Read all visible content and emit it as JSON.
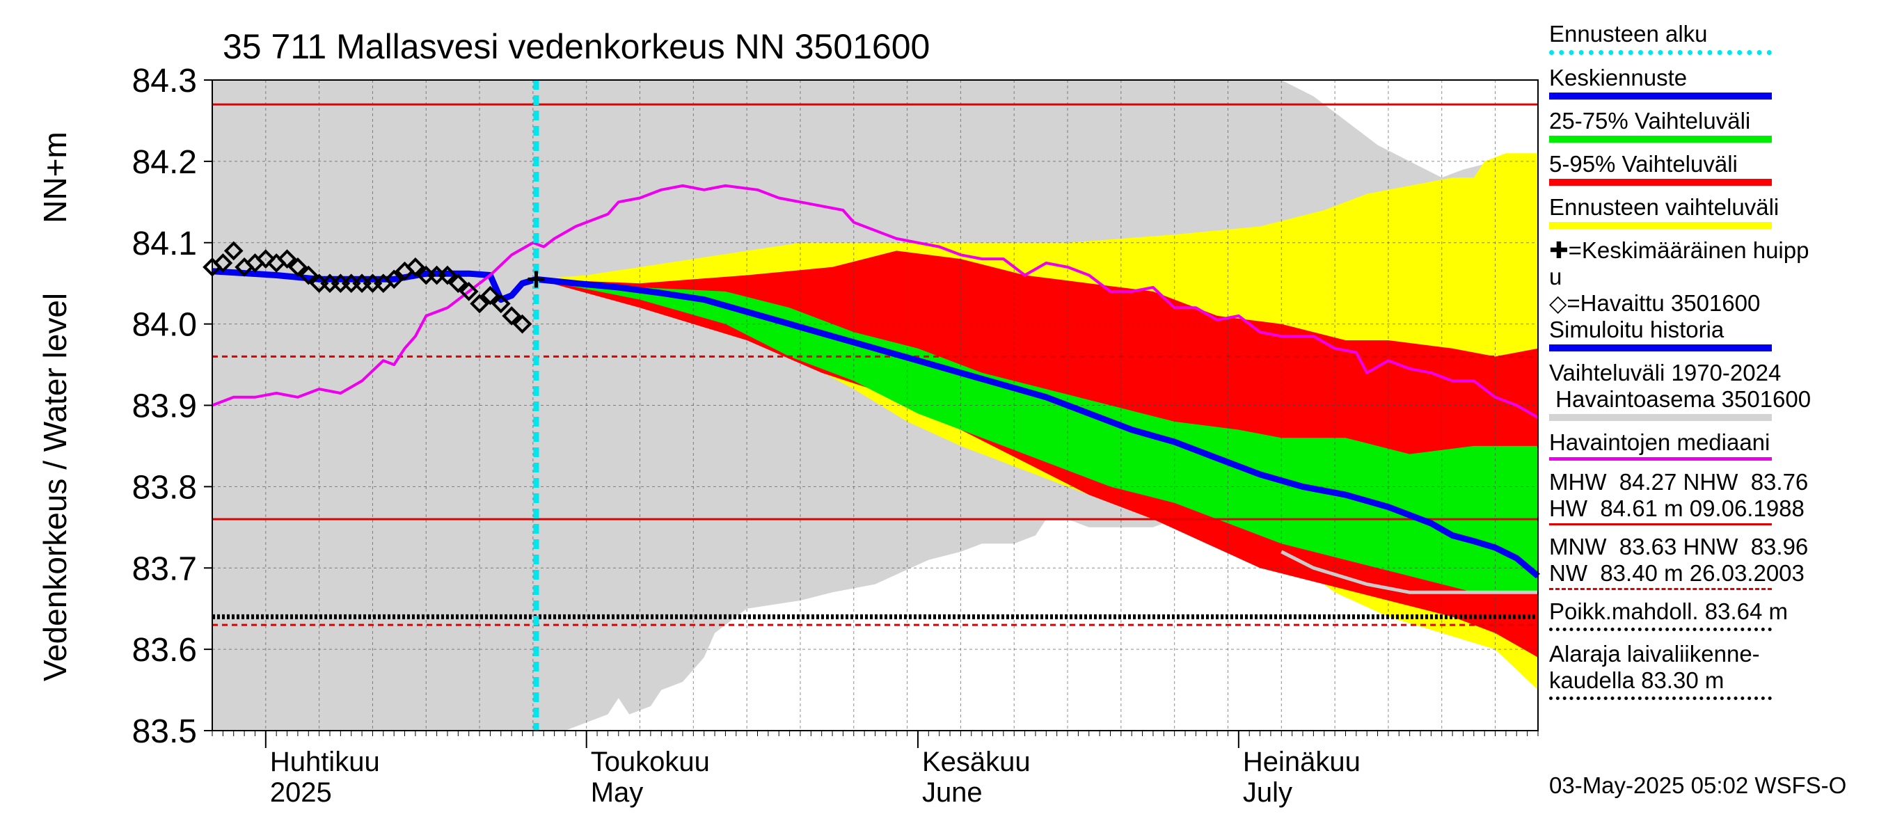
{
  "chart_data": {
    "type": "area",
    "title": "35 711 Mallasvesi vedenkorkeus NN 3501600",
    "ylabel_left": "Vedenkorkeus / Water level",
    "ylabel_unit": "NN+m",
    "ylim": [
      83.5,
      84.3
    ],
    "yticks": [
      "84.3",
      "84.2",
      "84.1",
      "84.0",
      "83.9",
      "83.8",
      "83.7",
      "83.6",
      "83.5"
    ],
    "x_range": [
      "2025-03-27",
      "2025-07-31"
    ],
    "month_labels": [
      {
        "top": "Huhtikuu",
        "bottom": "2025",
        "date": "2025-04-01"
      },
      {
        "top": "Toukokuu",
        "bottom": "May",
        "date": "2025-05-01"
      },
      {
        "top": "Kesäkuu",
        "bottom": "June",
        "date": "2025-06-01"
      },
      {
        "top": "Heinäkuu",
        "bottom": "July",
        "date": "2025-07-01"
      }
    ],
    "forecast_start_day": 30.3,
    "reference_lines": [
      {
        "name": "MHW",
        "value": 84.27,
        "style": "solid",
        "color": "#e00000"
      },
      {
        "name": "NHW",
        "value": 83.76,
        "style": "solid",
        "color": "#e00000"
      },
      {
        "name": "MNW",
        "value": 83.63,
        "style": "dashed",
        "color": "#e00000"
      },
      {
        "name": "HNW",
        "value": 83.96,
        "style": "dashed",
        "color": "#e00000"
      },
      {
        "name": "Poikk.mahdoll.",
        "value": 83.64,
        "style": "dotted",
        "color": "#000000"
      }
    ],
    "history_range": {
      "upper": [
        [
          0,
          84.3
        ],
        [
          100,
          84.3
        ],
        [
          103,
          84.28
        ],
        [
          106,
          84.25
        ],
        [
          109,
          84.22
        ],
        [
          112,
          84.2
        ],
        [
          115,
          84.18
        ],
        [
          117,
          84.19
        ],
        [
          120,
          84.2
        ],
        [
          124,
          84.21
        ]
      ],
      "lower": [
        [
          0,
          83.5
        ],
        [
          33,
          83.5
        ],
        [
          35,
          83.51
        ],
        [
          37,
          83.52
        ],
        [
          38,
          83.54
        ],
        [
          39,
          83.52
        ],
        [
          41,
          83.53
        ],
        [
          42,
          83.55
        ],
        [
          44,
          83.56
        ],
        [
          46,
          83.59
        ],
        [
          47,
          83.62
        ],
        [
          50,
          83.65
        ],
        [
          55,
          83.66
        ],
        [
          58,
          83.67
        ],
        [
          62,
          83.68
        ],
        [
          67,
          83.71
        ],
        [
          70,
          83.72
        ],
        [
          72,
          83.73
        ],
        [
          75,
          83.73
        ],
        [
          77,
          83.74
        ],
        [
          78,
          83.76
        ],
        [
          80,
          83.76
        ],
        [
          82,
          83.75
        ],
        [
          88,
          83.75
        ],
        [
          90,
          83.76
        ],
        [
          92,
          83.75
        ],
        [
          96,
          83.74
        ],
        [
          100,
          83.72
        ],
        [
          103,
          83.7
        ],
        [
          108,
          83.68
        ],
        [
          112,
          83.67
        ],
        [
          117,
          83.67
        ],
        [
          124,
          83.67
        ]
      ]
    },
    "forecast_bands": {
      "p0_100": {
        "upper": [
          [
            30.3,
            84.055
          ],
          [
            35,
            84.06
          ],
          [
            45,
            84.08
          ],
          [
            55,
            84.1
          ],
          [
            60,
            84.1
          ],
          [
            70,
            84.1
          ],
          [
            80,
            84.1
          ],
          [
            90,
            84.11
          ],
          [
            98,
            84.12
          ],
          [
            104,
            84.14
          ],
          [
            108,
            84.16
          ],
          [
            112,
            84.17
          ],
          [
            116,
            84.18
          ],
          [
            118,
            84.18
          ],
          [
            119,
            84.2
          ],
          [
            121,
            84.21
          ],
          [
            124,
            84.21
          ]
        ],
        "lower": [
          [
            30.3,
            84.055
          ],
          [
            40,
            84.03
          ],
          [
            50,
            83.99
          ],
          [
            60,
            83.92
          ],
          [
            65,
            83.88
          ],
          [
            70,
            83.85
          ],
          [
            80,
            83.8
          ],
          [
            90,
            83.75
          ],
          [
            100,
            83.72
          ],
          [
            105,
            83.67
          ],
          [
            110,
            83.64
          ],
          [
            115,
            83.62
          ],
          [
            120,
            83.6
          ],
          [
            124,
            83.55
          ]
        ]
      },
      "p5_95": {
        "upper": [
          [
            30.3,
            84.055
          ],
          [
            40,
            84.05
          ],
          [
            50,
            84.06
          ],
          [
            58,
            84.07
          ],
          [
            64,
            84.09
          ],
          [
            70,
            84.08
          ],
          [
            76,
            84.06
          ],
          [
            82,
            84.05
          ],
          [
            88,
            84.04
          ],
          [
            94,
            84.01
          ],
          [
            100,
            84.0
          ],
          [
            106,
            83.98
          ],
          [
            110,
            83.98
          ],
          [
            116,
            83.97
          ],
          [
            120,
            83.96
          ],
          [
            124,
            83.97
          ]
        ],
        "lower": [
          [
            30.3,
            84.055
          ],
          [
            40,
            84.02
          ],
          [
            50,
            83.98
          ],
          [
            57,
            83.94
          ],
          [
            64,
            83.91
          ],
          [
            70,
            83.87
          ],
          [
            76,
            83.83
          ],
          [
            82,
            83.79
          ],
          [
            88,
            83.76
          ],
          [
            93,
            83.73
          ],
          [
            98,
            83.7
          ],
          [
            104,
            83.68
          ],
          [
            110,
            83.66
          ],
          [
            116,
            83.64
          ],
          [
            120,
            83.62
          ],
          [
            124,
            83.59
          ]
        ]
      },
      "p25_75": {
        "upper": [
          [
            30.3,
            84.055
          ],
          [
            40,
            84.045
          ],
          [
            48,
            84.04
          ],
          [
            54,
            84.02
          ],
          [
            60,
            83.99
          ],
          [
            66,
            83.97
          ],
          [
            72,
            83.94
          ],
          [
            78,
            83.92
          ],
          [
            84,
            83.9
          ],
          [
            90,
            83.88
          ],
          [
            96,
            83.87
          ],
          [
            100,
            83.86
          ],
          [
            106,
            83.86
          ],
          [
            112,
            83.84
          ],
          [
            118,
            83.85
          ],
          [
            124,
            83.85
          ]
        ],
        "lower": [
          [
            30.3,
            84.055
          ],
          [
            40,
            84.03
          ],
          [
            48,
            84.0
          ],
          [
            54,
            83.96
          ],
          [
            60,
            83.93
          ],
          [
            66,
            83.89
          ],
          [
            72,
            83.86
          ],
          [
            78,
            83.83
          ],
          [
            84,
            83.8
          ],
          [
            90,
            83.78
          ],
          [
            96,
            83.75
          ],
          [
            100,
            83.73
          ],
          [
            106,
            83.71
          ],
          [
            112,
            83.69
          ],
          [
            118,
            83.67
          ],
          [
            124,
            83.67
          ]
        ]
      }
    },
    "series": [
      {
        "name": "Keskiennuste",
        "color": "#0000ee",
        "points": [
          [
            30.3,
            84.055
          ],
          [
            34,
            84.05
          ],
          [
            38,
            84.045
          ],
          [
            42,
            84.038
          ],
          [
            46,
            84.03
          ],
          [
            50,
            84.015
          ],
          [
            54,
            84.0
          ],
          [
            58,
            83.985
          ],
          [
            62,
            83.97
          ],
          [
            66,
            83.955
          ],
          [
            70,
            83.94
          ],
          [
            74,
            83.925
          ],
          [
            78,
            83.91
          ],
          [
            82,
            83.89
          ],
          [
            86,
            83.87
          ],
          [
            90,
            83.855
          ],
          [
            94,
            83.835
          ],
          [
            98,
            83.815
          ],
          [
            102,
            83.8
          ],
          [
            106,
            83.79
          ],
          [
            110,
            83.775
          ],
          [
            114,
            83.755
          ],
          [
            116,
            83.74
          ],
          [
            118,
            83.733
          ],
          [
            120,
            83.725
          ],
          [
            122,
            83.712
          ],
          [
            124,
            83.69
          ]
        ]
      },
      {
        "name": "Simuloitu historia",
        "color": "#0000ee",
        "points": [
          [
            0,
            84.065
          ],
          [
            6,
            84.06
          ],
          [
            10,
            84.055
          ],
          [
            14,
            84.055
          ],
          [
            17,
            84.055
          ],
          [
            20,
            84.062
          ],
          [
            24,
            84.062
          ],
          [
            26,
            84.06
          ],
          [
            27,
            84.03
          ],
          [
            28,
            84.035
          ],
          [
            29,
            84.05
          ],
          [
            30.3,
            84.055
          ]
        ]
      },
      {
        "name": "Havaintojen mediaani",
        "color": "#ee00ee",
        "points": [
          [
            0,
            83.9
          ],
          [
            2,
            83.91
          ],
          [
            4,
            83.91
          ],
          [
            6,
            83.915
          ],
          [
            8,
            83.91
          ],
          [
            10,
            83.92
          ],
          [
            12,
            83.915
          ],
          [
            14,
            83.93
          ],
          [
            16,
            83.955
          ],
          [
            17,
            83.95
          ],
          [
            18,
            83.97
          ],
          [
            19,
            83.985
          ],
          [
            20,
            84.01
          ],
          [
            22,
            84.02
          ],
          [
            24,
            84.04
          ],
          [
            26,
            84.06
          ],
          [
            28,
            84.085
          ],
          [
            30,
            84.1
          ],
          [
            31,
            84.095
          ],
          [
            32,
            84.105
          ],
          [
            34,
            84.12
          ],
          [
            37,
            84.135
          ],
          [
            38,
            84.15
          ],
          [
            40,
            84.155
          ],
          [
            42,
            84.165
          ],
          [
            44,
            84.17
          ],
          [
            46,
            84.165
          ],
          [
            48,
            84.17
          ],
          [
            51,
            84.165
          ],
          [
            53,
            84.155
          ],
          [
            55,
            84.15
          ],
          [
            59,
            84.14
          ],
          [
            60,
            84.125
          ],
          [
            64,
            84.105
          ],
          [
            66,
            84.1
          ],
          [
            68,
            84.095
          ],
          [
            70,
            84.085
          ],
          [
            72,
            84.08
          ],
          [
            74,
            84.08
          ],
          [
            76,
            84.06
          ],
          [
            78,
            84.075
          ],
          [
            80,
            84.07
          ],
          [
            82,
            84.06
          ],
          [
            84,
            84.04
          ],
          [
            86,
            84.04
          ],
          [
            88,
            84.045
          ],
          [
            90,
            84.02
          ],
          [
            92,
            84.02
          ],
          [
            94,
            84.005
          ],
          [
            96,
            84.01
          ],
          [
            98,
            83.99
          ],
          [
            100,
            83.985
          ],
          [
            103,
            83.985
          ],
          [
            105,
            83.97
          ],
          [
            107,
            83.965
          ],
          [
            108,
            83.94
          ],
          [
            110,
            83.955
          ],
          [
            112,
            83.945
          ],
          [
            114,
            83.94
          ],
          [
            116,
            83.93
          ],
          [
            118,
            83.93
          ],
          [
            120,
            83.91
          ],
          [
            122,
            83.9
          ],
          [
            124,
            83.885
          ]
        ]
      }
    ],
    "observed": {
      "name": "Havaittu 3501600",
      "points": [
        [
          0,
          84.07
        ],
        [
          1,
          84.075
        ],
        [
          2,
          84.09
        ],
        [
          3,
          84.07
        ],
        [
          4,
          84.075
        ],
        [
          5,
          84.08
        ],
        [
          6,
          84.075
        ],
        [
          7,
          84.08
        ],
        [
          8,
          84.07
        ],
        [
          9,
          84.06
        ],
        [
          10,
          84.05
        ],
        [
          11,
          84.05
        ],
        [
          12,
          84.05
        ],
        [
          13,
          84.05
        ],
        [
          14,
          84.05
        ],
        [
          15,
          84.05
        ],
        [
          16,
          84.05
        ],
        [
          17,
          84.055
        ],
        [
          18,
          84.065
        ],
        [
          19,
          84.07
        ],
        [
          20,
          84.06
        ],
        [
          21,
          84.06
        ],
        [
          22,
          84.06
        ],
        [
          23,
          84.05
        ],
        [
          24,
          84.04
        ],
        [
          25,
          84.025
        ],
        [
          26,
          84.035
        ],
        [
          27,
          84.025
        ],
        [
          28,
          84.01
        ],
        [
          29,
          84.0
        ]
      ]
    },
    "peak_marker": {
      "name": "Keskimääräinen huippu",
      "x": 30.3,
      "y": 84.055
    }
  },
  "legend": {
    "forecast_start": "Ennusteen alku",
    "mean_forecast": "Keskiennuste",
    "range_25_75": "25-75% Vaihteluväli",
    "range_5_95": "5-95% Vaihteluväli",
    "forecast_range": "Ennusteen vaihteluväli",
    "peak_line1": "✚=Keskimääräinen huipp",
    "peak_line2": "u",
    "observed": "◇=Havaittu 3501600",
    "sim_history": "Simuloitu historia",
    "hist_range_line1": "Vaihteluväli 1970-2024",
    "hist_range_line2": " Havaintoasema 3501600",
    "obs_median": "Havaintojen mediaani",
    "stats_line1": "MHW  84.27 NHW  83.76",
    "stats_line2": "HW  84.61 m 09.06.1988",
    "stats_line3": "MNW  83.63 HNW  83.96",
    "stats_line4": "NW  83.40 m 26.03.2003",
    "poikk": "Poikk.mahdoll. 83.64 m",
    "alaraja_line1": "Alaraja laivaliikenne-",
    "alaraja_line2": "kaudella 83.30 m"
  },
  "timestamp": "03-May-2025 05:02 WSFS-O",
  "colors": {
    "history_gray": "#d3d3d3",
    "yellow": "#ffff00",
    "red": "#ff0000",
    "green": "#00ee00",
    "blue": "#0000ee",
    "magenta": "#ee00ee",
    "cyan": "#00e5ee",
    "gray_line": "#cccccc"
  }
}
